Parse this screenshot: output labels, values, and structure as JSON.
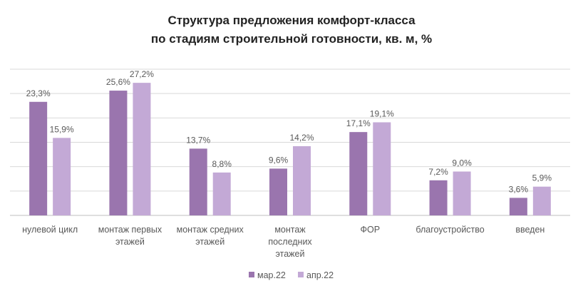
{
  "chart_data": {
    "type": "bar",
    "title_lines": [
      "Структура предложения комфорт-класса",
      "по стадиям строительной готовности, кв. м, %"
    ],
    "categories": [
      [
        "нулевой цикл"
      ],
      [
        "монтаж первых",
        "этажей"
      ],
      [
        "монтаж средних",
        "этажей"
      ],
      [
        "монтаж",
        "последних",
        "этажей"
      ],
      [
        "ФОР"
      ],
      [
        "благоустройство"
      ],
      [
        "введен"
      ]
    ],
    "series": [
      {
        "name": "мар.22",
        "color": "#9a75ae",
        "values": [
          23.3,
          25.6,
          13.7,
          9.6,
          17.1,
          7.2,
          3.6
        ],
        "labels": [
          "23,3%",
          "25,6%",
          "13,7%",
          "9,6%",
          "17,1%",
          "7,2%",
          "3,6%"
        ]
      },
      {
        "name": "апр.22",
        "color": "#c3a9d6",
        "values": [
          15.9,
          27.2,
          8.8,
          14.2,
          19.1,
          9.0,
          5.9
        ],
        "labels": [
          "15,9%",
          "27,2%",
          "8,8%",
          "14,2%",
          "19,1%",
          "9,0%",
          "5,9%"
        ]
      }
    ],
    "ylim": [
      0,
      30
    ],
    "grid": true,
    "legend": "bottom-center",
    "xlabel": "",
    "ylabel": ""
  }
}
